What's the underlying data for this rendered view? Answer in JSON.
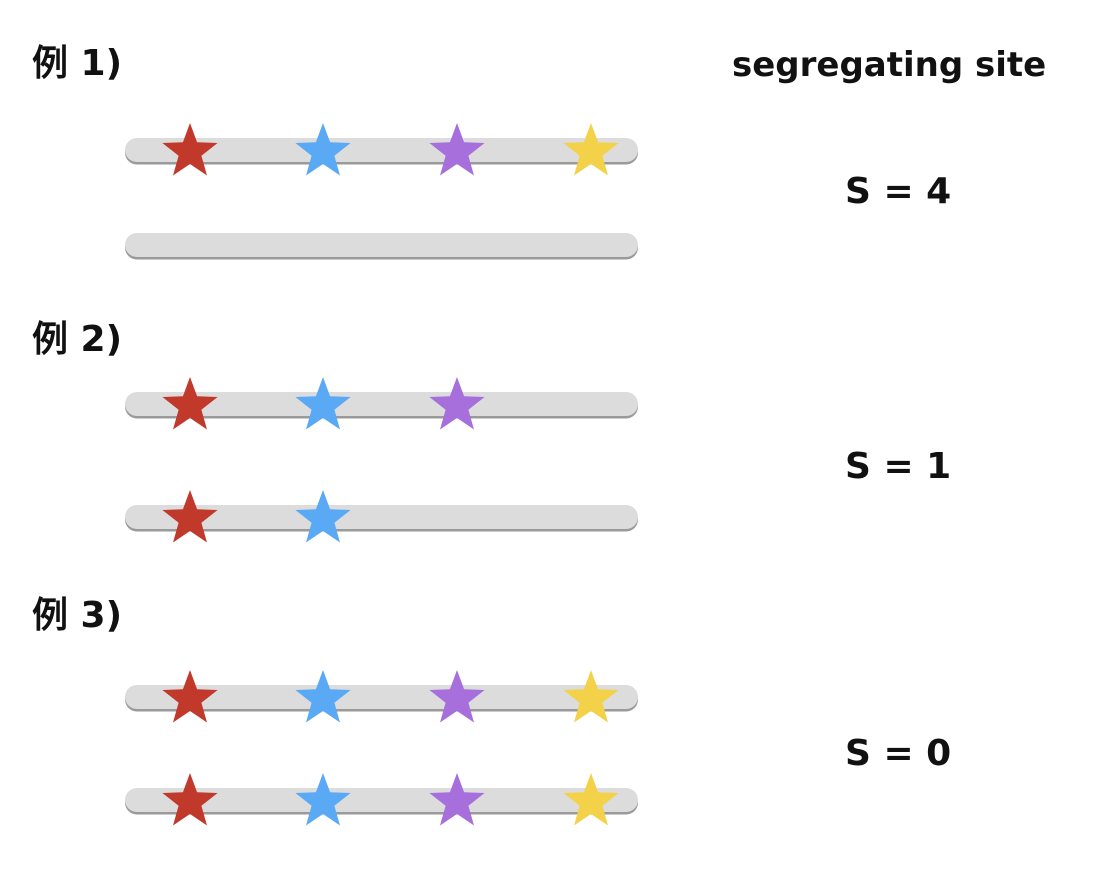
{
  "heading": "segregating site",
  "colors": {
    "bar": "#dcdcdc",
    "bar_shadow": "#9a9a9a",
    "red": "#c0392b",
    "blue": "#5aa9f5",
    "purple": "#a66fdb",
    "yellow": "#f3d24a"
  },
  "examples": [
    {
      "label": "例 1)",
      "s_value": "S = 4",
      "chromosomes": [
        {
          "stars": [
            "red",
            "blue",
            "purple",
            "yellow"
          ]
        },
        {
          "stars": []
        }
      ]
    },
    {
      "label": "例 2)",
      "s_value": "S = 1",
      "chromosomes": [
        {
          "stars": [
            "red",
            "blue",
            "purple"
          ]
        },
        {
          "stars": [
            "red",
            "blue"
          ]
        }
      ]
    },
    {
      "label": "例 3)",
      "s_value": "S = 0",
      "chromosomes": [
        {
          "stars": [
            "red",
            "blue",
            "purple",
            "yellow"
          ]
        },
        {
          "stars": [
            "red",
            "blue",
            "purple",
            "yellow"
          ]
        }
      ]
    }
  ]
}
